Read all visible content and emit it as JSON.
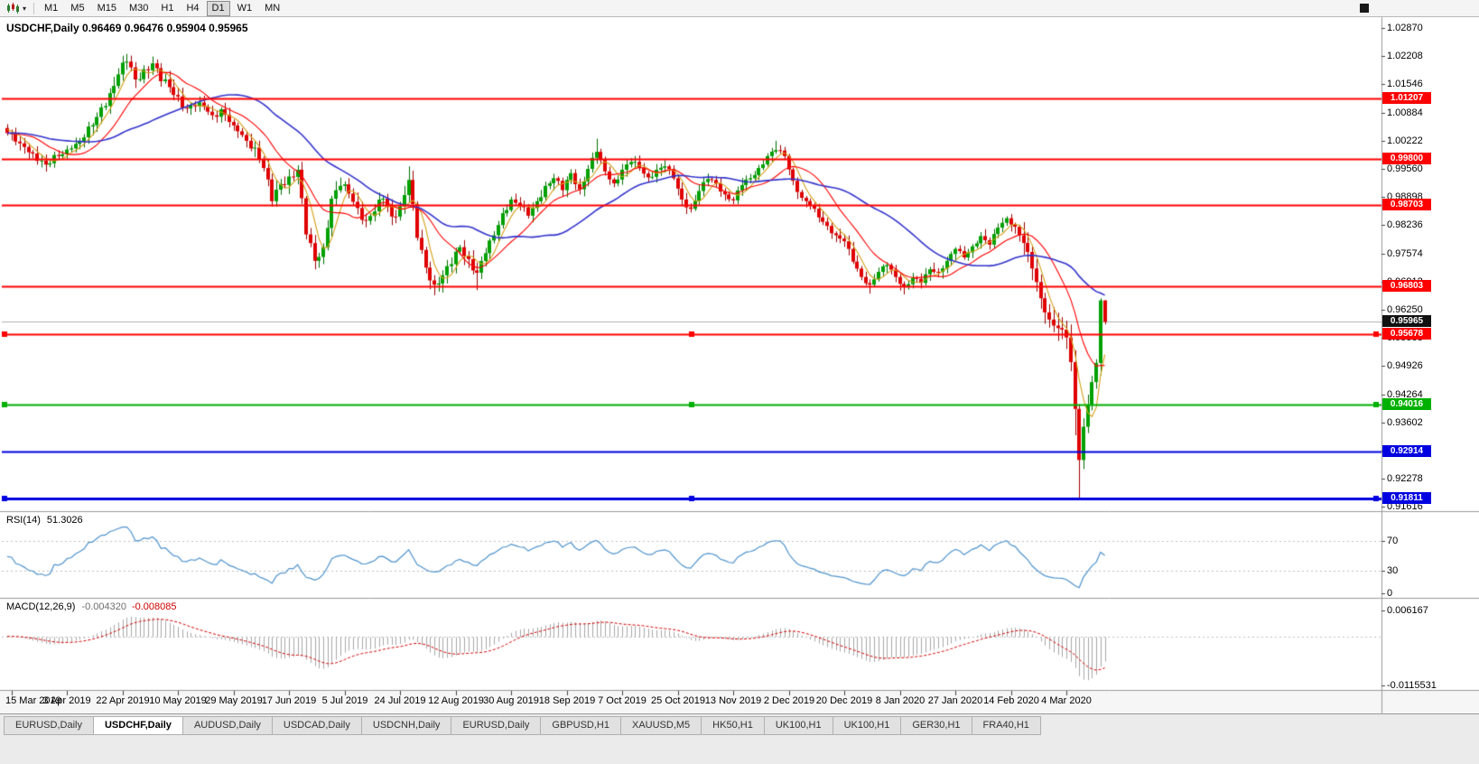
{
  "toolbar": {
    "chart_type_icon": "candlestick-chart-icon",
    "dropdown_icon": "chevron-down-icon",
    "timeframes": [
      {
        "label": "M1"
      },
      {
        "label": "M5"
      },
      {
        "label": "M15"
      },
      {
        "label": "M30"
      },
      {
        "label": "H1"
      },
      {
        "label": "H4"
      },
      {
        "label": "D1",
        "active": true
      },
      {
        "label": "W1"
      },
      {
        "label": "MN"
      }
    ]
  },
  "chart": {
    "title": "USDCHF,Daily 0.96469 0.96476 0.95904 0.95965",
    "symbol": "USDCHF",
    "period": "Daily",
    "open": "0.96469",
    "high": "0.96476",
    "low": "0.95904",
    "close": "0.95965",
    "current_price": "0.95965"
  },
  "rsi": {
    "name": "RSI(14)",
    "value": "51.3026",
    "axis_labels": [
      "70",
      "30",
      "0"
    ],
    "levels": [
      70,
      30,
      0
    ],
    "color": "#4f94cd"
  },
  "macd": {
    "name": "MACD(12,26,9)",
    "value_main": "-0.004320",
    "value_signal": "-0.008085",
    "axis_labels": [
      "0.006167",
      "-0.0115531"
    ],
    "histogram_color": "#a8a8a8",
    "signal_color": "#d40000"
  },
  "chart_data": {
    "type": "candlestick",
    "symbol": "USDCHF",
    "timeframe": "Daily",
    "bars": 258,
    "current_ohlc": {
      "open": 0.96469,
      "high": 0.96476,
      "low": 0.95904,
      "close": 0.95965
    },
    "up_color": "#00a000",
    "down_color": "#e00000",
    "up_stroke": "#006e00",
    "down_stroke": "#9c0000",
    "price_axis": {
      "top_label_price": 1.0287,
      "step": 0.00662,
      "labels": [
        "1.02870",
        "1.02208",
        "1.01546",
        "1.00884",
        "1.00222",
        "0.99560",
        "0.98898",
        "0.98236",
        "0.97574",
        "0.96912",
        "0.96250",
        "0.95588",
        "0.94926",
        "0.94264",
        "0.93602",
        "0.92940",
        "0.92278",
        "0.91616"
      ]
    },
    "dates": [
      "15 Mar 2019",
      "3 Apr 2019",
      "22 Apr 2019",
      "10 May 2019",
      "29 May 2019",
      "17 Jun 2019",
      "5 Jul 2019",
      "24 Jul 2019",
      "12 Aug 2019",
      "30 Aug 2019",
      "18 Sep 2019",
      "7 Oct 2019",
      "25 Oct 2019",
      "13 Nov 2019",
      "2 Dec 2019",
      "20 Dec 2019",
      "8 Jan 2020",
      "27 Jan 2020",
      "14 Feb 2020",
      "4 Mar 2020"
    ],
    "close_anchors": [
      [
        0,
        1.004
      ],
      [
        3,
        1.0016
      ],
      [
        6,
        0.9992
      ],
      [
        9,
        0.9966
      ],
      [
        12,
        0.9986
      ],
      [
        15,
        1.0004
      ],
      [
        18,
        1.003
      ],
      [
        21,
        1.0078
      ],
      [
        24,
        1.0134
      ],
      [
        26,
        1.0178
      ],
      [
        28,
        1.0208
      ],
      [
        30,
        1.0166
      ],
      [
        32,
        1.019
      ],
      [
        34,
        1.0204
      ],
      [
        36,
        1.0162
      ],
      [
        38,
        1.0148
      ],
      [
        40,
        1.0126
      ],
      [
        42,
        1.0098
      ],
      [
        45,
        1.0112
      ],
      [
        48,
        1.0082
      ],
      [
        50,
        1.0096
      ],
      [
        53,
        1.0058
      ],
      [
        56,
        1.0022
      ],
      [
        58,
        1.0006
      ],
      [
        60,
        0.9958
      ],
      [
        62,
        0.988
      ],
      [
        64,
        0.992
      ],
      [
        66,
        0.9938
      ],
      [
        68,
        0.9954
      ],
      [
        70,
        0.9802
      ],
      [
        72,
        0.974
      ],
      [
        74,
        0.9772
      ],
      [
        76,
        0.9886
      ],
      [
        78,
        0.9916
      ],
      [
        80,
        0.9898
      ],
      [
        82,
        0.9864
      ],
      [
        84,
        0.9834
      ],
      [
        86,
        0.9856
      ],
      [
        88,
        0.9886
      ],
      [
        90,
        0.9844
      ],
      [
        92,
        0.9868
      ],
      [
        94,
        0.993
      ],
      [
        96,
        0.9794
      ],
      [
        98,
        0.9724
      ],
      [
        100,
        0.9684
      ],
      [
        102,
        0.9706
      ],
      [
        104,
        0.9732
      ],
      [
        106,
        0.9772
      ],
      [
        108,
        0.9744
      ],
      [
        110,
        0.9712
      ],
      [
        112,
        0.9758
      ],
      [
        114,
        0.98
      ],
      [
        116,
        0.9852
      ],
      [
        118,
        0.9884
      ],
      [
        120,
        0.9868
      ],
      [
        122,
        0.9846
      ],
      [
        124,
        0.988
      ],
      [
        126,
        0.9916
      ],
      [
        128,
        0.9934
      ],
      [
        130,
        0.9906
      ],
      [
        132,
        0.9946
      ],
      [
        134,
        0.9908
      ],
      [
        136,
        0.9956
      ],
      [
        138,
        0.9996
      ],
      [
        140,
        0.995
      ],
      [
        142,
        0.9922
      ],
      [
        144,
        0.9954
      ],
      [
        146,
        0.9972
      ],
      [
        148,
        0.9958
      ],
      [
        150,
        0.9936
      ],
      [
        152,
        0.9954
      ],
      [
        154,
        0.9962
      ],
      [
        156,
        0.9934
      ],
      [
        158,
        0.9884
      ],
      [
        160,
        0.9862
      ],
      [
        162,
        0.9904
      ],
      [
        164,
        0.9932
      ],
      [
        166,
        0.9922
      ],
      [
        168,
        0.9896
      ],
      [
        170,
        0.9882
      ],
      [
        172,
        0.9918
      ],
      [
        174,
        0.9934
      ],
      [
        176,
        0.9958
      ],
      [
        178,
        0.9986
      ],
      [
        180,
        1.0
      ],
      [
        182,
        0.9986
      ],
      [
        184,
        0.9928
      ],
      [
        186,
        0.9888
      ],
      [
        188,
        0.987
      ],
      [
        190,
        0.9842
      ],
      [
        192,
        0.9822
      ],
      [
        194,
        0.98
      ],
      [
        196,
        0.9786
      ],
      [
        198,
        0.9738
      ],
      [
        200,
        0.9702
      ],
      [
        202,
        0.9684
      ],
      [
        204,
        0.9714
      ],
      [
        206,
        0.973
      ],
      [
        208,
        0.9702
      ],
      [
        210,
        0.9678
      ],
      [
        212,
        0.97
      ],
      [
        214,
        0.9688
      ],
      [
        216,
        0.972
      ],
      [
        218,
        0.9714
      ],
      [
        220,
        0.974
      ],
      [
        222,
        0.9768
      ],
      [
        224,
        0.9748
      ],
      [
        226,
        0.9774
      ],
      [
        228,
        0.9798
      ],
      [
        230,
        0.9778
      ],
      [
        232,
        0.9818
      ],
      [
        234,
        0.984
      ],
      [
        236,
        0.982
      ],
      [
        238,
        0.9782
      ],
      [
        240,
        0.9722
      ],
      [
        242,
        0.9652
      ],
      [
        244,
        0.9602
      ],
      [
        246,
        0.9582
      ],
      [
        248,
        0.956
      ],
      [
        249,
        0.9502
      ],
      [
        250,
        0.9392
      ],
      [
        251,
        0.9272
      ],
      [
        252,
        0.935
      ],
      [
        253,
        0.94
      ],
      [
        254,
        0.9455
      ],
      [
        255,
        0.95
      ],
      [
        256,
        0.96469
      ],
      [
        257,
        0.95965
      ]
    ],
    "wick_overrides": {
      "28": {
        "high": 1.0226
      },
      "34": {
        "high": 1.022
      },
      "94": {
        "high": 0.9962
      },
      "100": {
        "low": 0.9659
      },
      "110": {
        "low": 0.9671
      },
      "138": {
        "high": 1.0027
      },
      "180": {
        "high": 1.0022
      },
      "202": {
        "low": 0.9663
      },
      "210": {
        "low": 0.9661
      },
      "250": {
        "low": 0.933
      },
      "251": {
        "low": 0.9182
      },
      "256": {
        "high": 0.9652
      },
      "257": {
        "high": 0.96476,
        "low": 0.95904
      }
    },
    "moving_averages": [
      {
        "period": 5,
        "color": "#d4a017",
        "width": 1.1
      },
      {
        "period": 13,
        "color": "#ff0000",
        "width": 1.1
      },
      {
        "period": 34,
        "color": "#3333cc",
        "width": 1.6
      }
    ],
    "horizontal_lines": [
      {
        "price": 1.01207,
        "label": "1.01207",
        "color": "#ff0000",
        "width": 2
      },
      {
        "price": 0.998,
        "label": "0.99800",
        "color": "#ff0000",
        "width": 2
      },
      {
        "price": 0.98703,
        "label": "0.98703",
        "color": "#ff0000",
        "width": 2
      },
      {
        "price": 0.96803,
        "label": "0.96803",
        "color": "#ff0000",
        "width": 2
      },
      {
        "price": 0.95678,
        "label": "0.95678",
        "color": "#ff0000",
        "width": 2,
        "selected": true
      },
      {
        "price": 0.94016,
        "label": "0.94016",
        "color": "#00b000",
        "width": 2,
        "selected": true
      },
      {
        "price": 0.92914,
        "label": "0.92914",
        "color": "#0000e0",
        "width": 2
      },
      {
        "price": 0.91811,
        "label": "0.91811",
        "color": "#0000e0",
        "width": 3,
        "selected": true
      }
    ],
    "current_price_line": {
      "price": 0.95965,
      "label": "0.95965",
      "line_color": "#b0b0b0",
      "badge_color": "#111111"
    },
    "oscillators": {
      "rsi": {
        "period": 14,
        "current": 51.3026,
        "levels": [
          70,
          30
        ]
      },
      "macd": {
        "fast": 12,
        "slow": 26,
        "signal": 9,
        "current_macd": -0.00432,
        "current_signal": -0.008085,
        "scale_max": 0.006167,
        "scale_min": -0.0115531
      }
    }
  },
  "tabs": [
    {
      "label": "EURUSD,Daily"
    },
    {
      "label": "USDCHF,Daily",
      "active": true
    },
    {
      "label": "AUDUSD,Daily"
    },
    {
      "label": "USDCAD,Daily"
    },
    {
      "label": "USDCNH,Daily"
    },
    {
      "label": "EURUSD,Daily"
    },
    {
      "label": "GBPUSD,H1"
    },
    {
      "label": "XAUUSD,M5"
    },
    {
      "label": "HK50,H1"
    },
    {
      "label": "UK100,H1"
    },
    {
      "label": "UK100,H1"
    },
    {
      "label": "GER30,H1"
    },
    {
      "label": "FRA40,H1"
    }
  ]
}
